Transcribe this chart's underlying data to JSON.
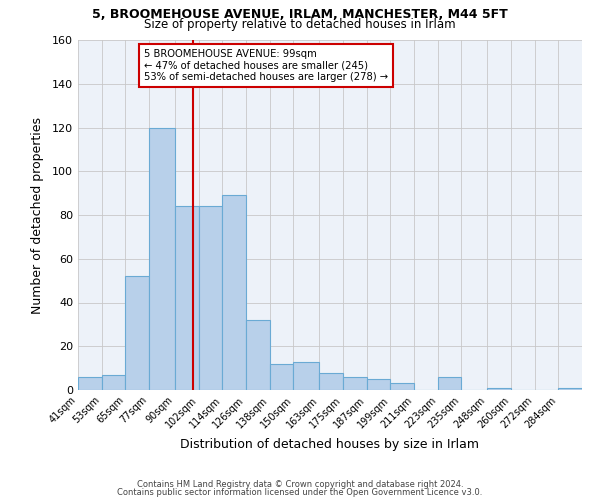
{
  "title1": "5, BROOMEHOUSE AVENUE, IRLAM, MANCHESTER, M44 5FT",
  "title2": "Size of property relative to detached houses in Irlam",
  "xlabel": "Distribution of detached houses by size in Irlam",
  "ylabel": "Number of detached properties",
  "bin_labels": [
    "41sqm",
    "53sqm",
    "65sqm",
    "77sqm",
    "90sqm",
    "102sqm",
    "114sqm",
    "126sqm",
    "138sqm",
    "150sqm",
    "163sqm",
    "175sqm",
    "187sqm",
    "199sqm",
    "211sqm",
    "223sqm",
    "235sqm",
    "248sqm",
    "260sqm",
    "272sqm",
    "284sqm"
  ],
  "bar_values": [
    6,
    7,
    52,
    120,
    84,
    84,
    89,
    32,
    12,
    13,
    8,
    6,
    5,
    3,
    0,
    6,
    0,
    1,
    0,
    0,
    1
  ],
  "bin_edges": [
    41,
    53,
    65,
    77,
    90,
    102,
    114,
    126,
    138,
    150,
    163,
    175,
    187,
    199,
    211,
    223,
    235,
    248,
    260,
    272,
    284,
    296
  ],
  "vline_x": 99,
  "bar_color": "#b8d0ea",
  "bar_edge_color": "#6aaad4",
  "vline_color": "#cc0000",
  "annotation_line1": "5 BROOMEHOUSE AVENUE: 99sqm",
  "annotation_line2": "← 47% of detached houses are smaller (245)",
  "annotation_line3": "53% of semi-detached houses are larger (278) →",
  "ylim": [
    0,
    160
  ],
  "yticks": [
    0,
    20,
    40,
    60,
    80,
    100,
    120,
    140,
    160
  ],
  "footer1": "Contains HM Land Registry data © Crown copyright and database right 2024.",
  "footer2": "Contains public sector information licensed under the Open Government Licence v3.0.",
  "background_color": "#edf2f9",
  "grid_color": "#c8c8c8"
}
